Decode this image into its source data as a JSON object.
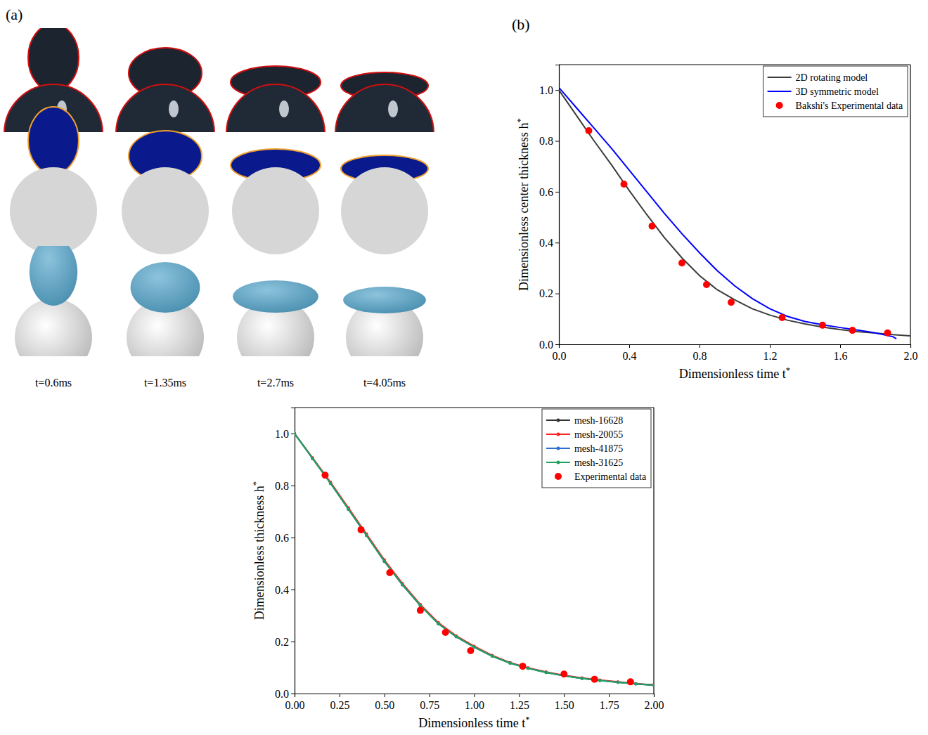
{
  "figure_a": {
    "label": "(a)",
    "times": [
      "t=0.6ms",
      "t=1.35ms",
      "t=2.7ms",
      "t=4.05ms"
    ]
  },
  "chart_data": [
    {
      "type": "line",
      "panel": "(b)",
      "x_label": "Dimensionless time t*",
      "y_label": "Dimensionless center thickness h*",
      "xlim": [
        0,
        2
      ],
      "ylim": [
        0,
        1.1
      ],
      "xticks": [
        {
          "value": 0,
          "label": "0.0"
        },
        0.4,
        0.8,
        1.2,
        1.6,
        {
          "value": 2,
          "label": "2.0"
        }
      ],
      "yticks": [
        {
          "value": 0,
          "label": "0.0"
        },
        0.2,
        0.4,
        0.6,
        0.8,
        {
          "value": 1,
          "label": "1.0"
        }
      ],
      "legend": "upper right",
      "series": [
        {
          "name": "2D rotating model",
          "color": "#3c3c3c",
          "type": "line",
          "line_style": "solid",
          "x": [
            0,
            0.1,
            0.2,
            0.3,
            0.4,
            0.5,
            0.6,
            0.7,
            0.8,
            0.9,
            1.0,
            1.1,
            1.2,
            1.3,
            1.4,
            1.5,
            1.6,
            1.7,
            1.8,
            1.9,
            2.0
          ],
          "values": [
            1.0,
            0.9,
            0.8,
            0.705,
            0.605,
            0.51,
            0.42,
            0.34,
            0.27,
            0.215,
            0.175,
            0.14,
            0.115,
            0.095,
            0.08,
            0.068,
            0.058,
            0.05,
            0.044,
            0.038,
            0.033
          ]
        },
        {
          "name": "3D symmetric model",
          "color": "#0000ff",
          "type": "line",
          "line_style": "solid",
          "x": [
            0,
            0.1,
            0.2,
            0.3,
            0.4,
            0.5,
            0.6,
            0.7,
            0.8,
            0.9,
            1.0,
            1.1,
            1.2,
            1.3,
            1.4,
            1.5,
            1.6,
            1.7,
            1.8,
            1.9,
            1.92
          ],
          "values": [
            1.01,
            0.93,
            0.85,
            0.77,
            0.685,
            0.6,
            0.515,
            0.435,
            0.36,
            0.29,
            0.23,
            0.18,
            0.14,
            0.11,
            0.09,
            0.077,
            0.066,
            0.056,
            0.045,
            0.03,
            0.022
          ]
        },
        {
          "name": "Bakshi's Experimental data",
          "color": "#ff0000",
          "type": "scatter",
          "marker": "circle",
          "x": [
            0.17,
            0.37,
            0.53,
            0.7,
            0.84,
            0.98,
            1.27,
            1.5,
            1.67,
            1.87
          ],
          "values": [
            0.84,
            0.63,
            0.465,
            0.32,
            0.235,
            0.165,
            0.105,
            0.075,
            0.055,
            0.045
          ]
        }
      ]
    },
    {
      "type": "line",
      "x_label": "Dimensionless time t*",
      "y_label": "Dimensionless thickness h*",
      "xlim": [
        0,
        2
      ],
      "ylim": [
        0,
        1.1
      ],
      "xticks": [
        {
          "value": 0,
          "label": "0.00"
        },
        0.25,
        {
          "value": 0.5,
          "label": "0.50"
        },
        0.75,
        {
          "value": 1,
          "label": "1.00"
        },
        1.25,
        {
          "value": 1.5,
          "label": "1.50"
        },
        1.75,
        {
          "value": 2,
          "label": "2.00"
        }
      ],
      "yticks": [
        {
          "value": 0,
          "label": "0.0"
        },
        0.2,
        0.4,
        0.6,
        0.8,
        {
          "value": 1,
          "label": "1.0"
        }
      ],
      "legend": "upper right",
      "series": [
        {
          "name": "mesh-16628",
          "color": "#333333",
          "type": "line",
          "marker": "circle",
          "line_style": "solid",
          "x": [
            0,
            0.1,
            0.2,
            0.3,
            0.4,
            0.5,
            0.6,
            0.7,
            0.8,
            0.9,
            1.0,
            1.1,
            1.2,
            1.3,
            1.4,
            1.5,
            1.6,
            1.7,
            1.8,
            1.9,
            2.0
          ],
          "values": [
            1.0,
            0.905,
            0.81,
            0.71,
            0.61,
            0.51,
            0.42,
            0.34,
            0.27,
            0.22,
            0.18,
            0.145,
            0.118,
            0.098,
            0.082,
            0.069,
            0.059,
            0.051,
            0.044,
            0.038,
            0.033
          ]
        },
        {
          "name": "mesh-20055",
          "color": "#ff2020",
          "type": "line",
          "marker": "circle",
          "line_style": "solid",
          "x": [
            0,
            0.1,
            0.2,
            0.3,
            0.4,
            0.5,
            0.6,
            0.7,
            0.8,
            0.9,
            1.0,
            1.1,
            1.2,
            1.3,
            1.4,
            1.5,
            1.6,
            1.7,
            1.8,
            1.9,
            2.0
          ],
          "values": [
            1.0,
            0.907,
            0.813,
            0.714,
            0.614,
            0.514,
            0.424,
            0.343,
            0.273,
            0.222,
            0.182,
            0.147,
            0.119,
            0.099,
            0.083,
            0.07,
            0.06,
            0.052,
            0.045,
            0.038,
            0.033
          ]
        },
        {
          "name": "mesh-41875",
          "color": "#2f6fd0",
          "type": "line",
          "marker": "circle",
          "line_style": "solid",
          "x": [
            0,
            0.1,
            0.2,
            0.3,
            0.4,
            0.5,
            0.6,
            0.7,
            0.8,
            0.9,
            1.0,
            1.1,
            1.2,
            1.3,
            1.4,
            1.5,
            1.6,
            1.7,
            1.8,
            1.9,
            2.0
          ],
          "values": [
            1.0,
            0.904,
            0.808,
            0.708,
            0.608,
            0.508,
            0.418,
            0.338,
            0.268,
            0.218,
            0.178,
            0.144,
            0.117,
            0.097,
            0.081,
            0.068,
            0.058,
            0.05,
            0.043,
            0.037,
            0.032
          ]
        },
        {
          "name": "mesh-31625",
          "color": "#1fa35c",
          "type": "line",
          "marker": "circle",
          "line_style": "solid",
          "x": [
            0,
            0.1,
            0.2,
            0.3,
            0.4,
            0.5,
            0.6,
            0.7,
            0.8,
            0.9,
            1.0,
            1.1,
            1.2,
            1.3,
            1.4,
            1.5,
            1.6,
            1.7,
            1.8,
            1.9,
            2.0
          ],
          "values": [
            1.0,
            0.905,
            0.809,
            0.709,
            0.609,
            0.509,
            0.419,
            0.339,
            0.269,
            0.219,
            0.179,
            0.144,
            0.117,
            0.097,
            0.081,
            0.068,
            0.058,
            0.05,
            0.043,
            0.037,
            0.032
          ]
        },
        {
          "name": "Experimental data",
          "color": "#ff0000",
          "type": "scatter",
          "marker": "circle",
          "x": [
            0.17,
            0.37,
            0.53,
            0.7,
            0.84,
            0.98,
            1.27,
            1.5,
            1.67,
            1.87
          ],
          "values": [
            0.84,
            0.63,
            0.465,
            0.32,
            0.235,
            0.165,
            0.105,
            0.075,
            0.055,
            0.045
          ]
        }
      ]
    }
  ]
}
